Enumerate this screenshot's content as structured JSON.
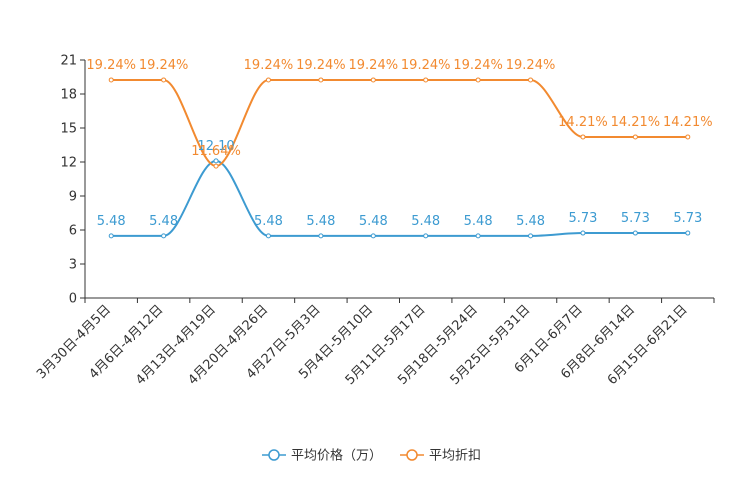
{
  "chart_data": {
    "type": "line",
    "categories": [
      "3月30日-4月5日",
      "4月6日-4月12日",
      "4月13日-4月19日",
      "4月20日-4月26日",
      "4月27日-5月3日",
      "5月4日-5月10日",
      "5月11日-5月17日",
      "5月18日-5月24日",
      "5月25日-5月31日",
      "6月1日-6月7日",
      "6月8日-6月14日",
      "6月15日-6月21日"
    ],
    "ylim": [
      0,
      21
    ],
    "yticks": [
      0,
      3,
      6,
      9,
      12,
      15,
      18,
      21
    ],
    "series": [
      {
        "name": "平均价格（万）",
        "color": "#3d9bd1",
        "values": [
          5.48,
          5.48,
          12.1,
          5.48,
          5.48,
          5.48,
          5.48,
          5.48,
          5.48,
          5.73,
          5.73,
          5.73
        ],
        "labels": [
          "5.48",
          "5.48",
          "12.10",
          "5.48",
          "5.48",
          "5.48",
          "5.48",
          "5.48",
          "5.48",
          "5.73",
          "5.73",
          "5.73"
        ]
      },
      {
        "name": "平均折扣",
        "color": "#f28a30",
        "values": [
          19.24,
          19.24,
          11.64,
          19.24,
          19.24,
          19.24,
          19.24,
          19.24,
          19.24,
          14.21,
          14.21,
          14.21
        ],
        "labels": [
          "19.24%",
          "19.24%",
          "11.64%",
          "19.24%",
          "19.24%",
          "19.24%",
          "19.24%",
          "19.24%",
          "19.24%",
          "14.21%",
          "14.21%",
          "14.21%"
        ]
      }
    ]
  }
}
